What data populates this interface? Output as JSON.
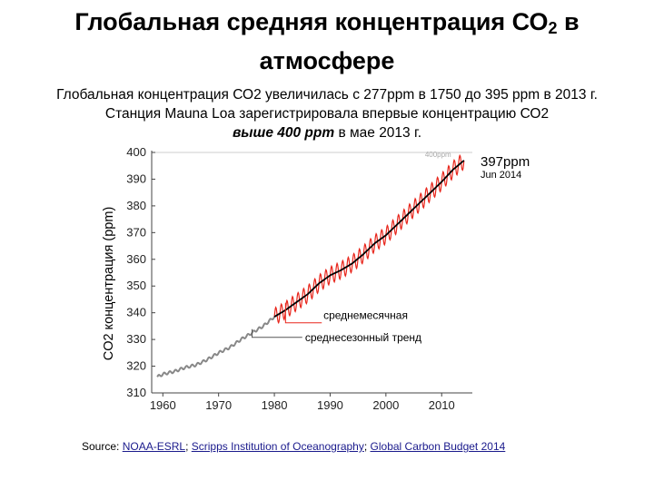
{
  "page": {
    "title_main": "Глобальная средняя  концентрация СО",
    "title_sub": "2",
    "title_tail": " в",
    "title_line2": "атмосфере",
    "subtitle_line1": "Глобальная концентрация СО2 увеличилась с 277ppm в 1750 до 395 ppm в 2013 г.",
    "subtitle_line2": "Станция Mauna Loa зарегистрировала впервые концентрацию СО2",
    "subtitle_line3_bold": "выше 400 ppm",
    "subtitle_line3_rest": " в мае 2013 г.",
    "source_label": "Source: ",
    "source_links": [
      "NOAA-ESRL",
      "Scripps Institution of Oceanography",
      "Global Carbon Budget 2014"
    ],
    "source_sep": "; "
  },
  "chart_data": {
    "type": "line",
    "ylabel": "CO2 концентрация (ppm)",
    "xlim": [
      1958,
      2015.5
    ],
    "ylim": [
      310,
      400
    ],
    "x_ticks": [
      1960,
      1970,
      1980,
      1990,
      2000,
      2010
    ],
    "y_ticks": [
      310,
      320,
      330,
      340,
      350,
      360,
      370,
      380,
      390,
      400
    ],
    "ref_line": {
      "value": 400,
      "label": "400ppm"
    },
    "end_label": {
      "value": "397ppm",
      "date": "Jun 2014"
    },
    "annotations": [
      "среднемесячная",
      "среднесезонный тренд"
    ],
    "series": [
      {
        "role": "trend_grey",
        "color": "#888888",
        "x": [
          1959,
          1960,
          1962,
          1964,
          1966,
          1968,
          1970,
          1972,
          1974,
          1976,
          1978,
          1980
        ],
        "y": [
          316,
          317,
          318,
          319.5,
          320.5,
          322.5,
          325,
          327,
          330,
          332.5,
          335,
          338.5
        ]
      },
      {
        "role": "trend_black",
        "color": "#000000",
        "x": [
          1980,
          1982,
          1984,
          1986,
          1988,
          1990,
          1992,
          1994,
          1996,
          1998,
          2000,
          2002,
          2004,
          2006,
          2008,
          2010,
          2012,
          2014
        ],
        "y": [
          338.5,
          341,
          344,
          347,
          351,
          354,
          356,
          358.5,
          362,
          366,
          369,
          373,
          377,
          381,
          385,
          389,
          393.5,
          397
        ]
      },
      {
        "role": "monthly_amplitude",
        "color": "#e8261c",
        "value": 3.2
      }
    ],
    "colors": {
      "monthly": "#e8261c",
      "trend": "#000000",
      "historic": "#888888",
      "axis": "#444444",
      "ref": "#cccccc"
    }
  }
}
